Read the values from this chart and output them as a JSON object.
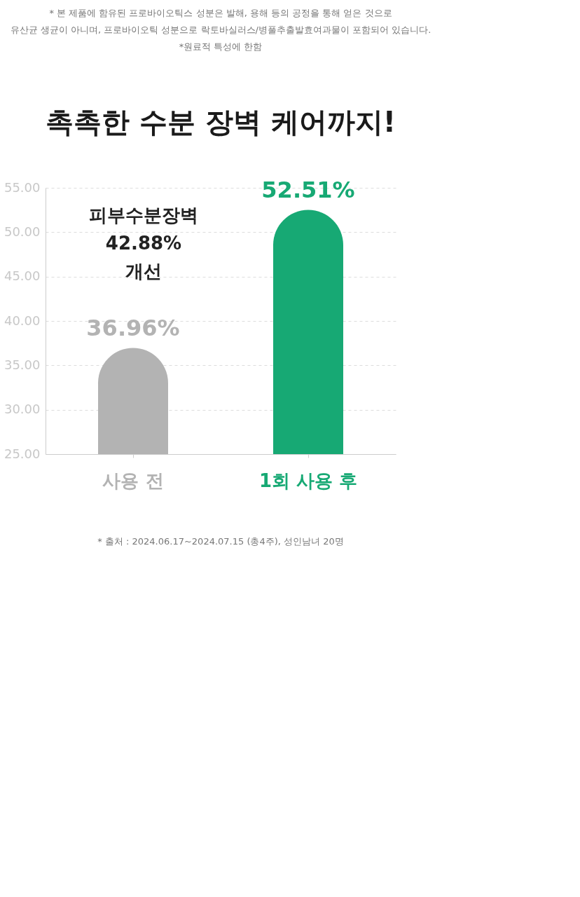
{
  "chart_data": {
    "type": "bar",
    "title": "촉촉한 수분 장벽 케어까지!",
    "categories": [
      "사용 전",
      "1회 사용 후"
    ],
    "values": [
      36.96,
      52.51
    ],
    "colors": [
      "#b3b3b3",
      "#17a974"
    ],
    "value_labels": [
      "36.96%",
      "52.51%"
    ],
    "ylim": [
      25,
      55
    ],
    "yticks": [
      {
        "value": 25,
        "label": "25.00"
      },
      {
        "value": 30,
        "label": "30.00"
      },
      {
        "value": 35,
        "label": "35.00"
      },
      {
        "value": 40,
        "label": "40.00"
      },
      {
        "value": 45,
        "label": "45.00"
      },
      {
        "value": 50,
        "label": "50.00"
      },
      {
        "value": 55,
        "label": "55.00"
      }
    ],
    "grid": "y",
    "annotations": [
      "* 본 제품에 함유된 프로바이오틱스 성분은 발해, 용해 등의 공정을 통해 얻은 것으로",
      "유산균 생균이 아니며, 프로바이오틱 성분으로 락토바실러스/병풀추출발효여과물이 포함되어 있습니다.",
      "*원료적 특성에 한함",
      "피부수분장벽 42.88% 개선",
      "* 출처 : 2024.06.17~2024.07.15 (총4주), 성인남녀 20명"
    ]
  }
}
